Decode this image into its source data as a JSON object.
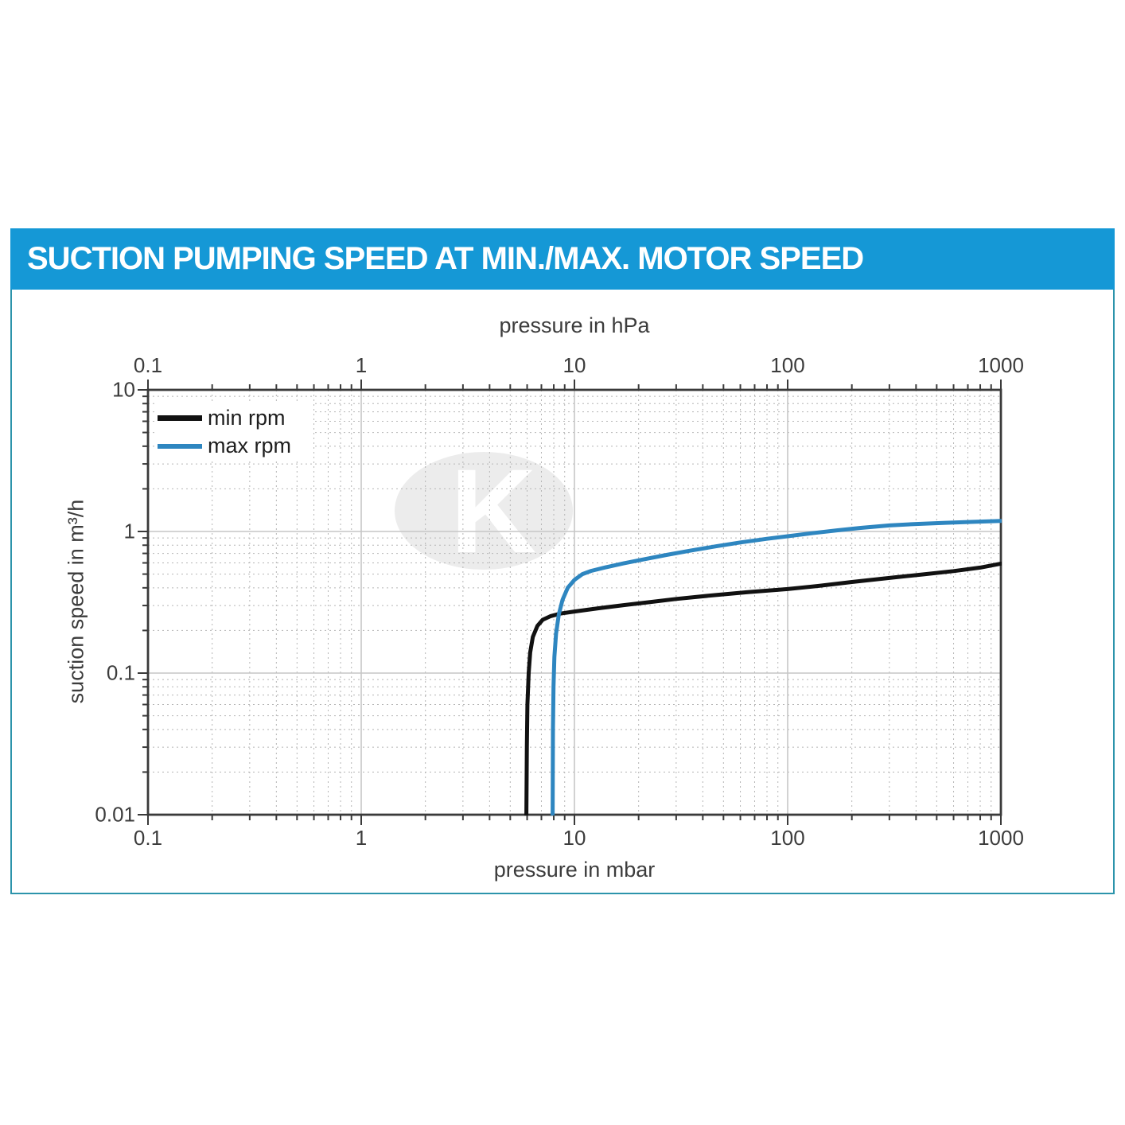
{
  "header": {
    "title": "SUCTION PUMPING SPEED AT MIN./MAX. MOTOR SPEED"
  },
  "colors": {
    "header_bg": "#1598d6",
    "header_text": "#ffffff",
    "panel_border": "#2c94ab",
    "axis": "#3a3a3a",
    "grid_major": "#c6c6c6",
    "grid_minor": "#b5b5b5",
    "min_rpm": "#111111",
    "max_rpm": "#2e86c0",
    "watermark": "#ececec"
  },
  "watermark": {
    "letter": "K"
  },
  "chart_data": {
    "type": "line",
    "x_scale": "log",
    "y_scale": "log",
    "x_range": [
      0.1,
      1000
    ],
    "y_range": [
      0.01,
      10
    ],
    "grid": "major-solid, minor-dotted",
    "x_top": {
      "label": "pressure in hPa",
      "ticks": [
        "0.1",
        "1",
        "10",
        "100",
        "1000"
      ]
    },
    "x_bottom": {
      "label": "pressure in mbar",
      "ticks": [
        "0.1",
        "1",
        "10",
        "100",
        "1000"
      ]
    },
    "y": {
      "label": "suction speed in m³/h",
      "ticks": [
        "10",
        "1",
        "0.1",
        "0.01"
      ]
    },
    "legend": {
      "position": "top-left"
    },
    "series": [
      {
        "name": "min rpm",
        "color": "#111111",
        "points": [
          [
            5.95,
            0.01
          ],
          [
            5.98,
            0.03
          ],
          [
            6.02,
            0.06
          ],
          [
            6.1,
            0.1
          ],
          [
            6.2,
            0.14
          ],
          [
            6.38,
            0.18
          ],
          [
            6.7,
            0.215
          ],
          [
            7.1,
            0.238
          ],
          [
            7.7,
            0.252
          ],
          [
            8.6,
            0.263
          ],
          [
            10,
            0.272
          ],
          [
            13,
            0.287
          ],
          [
            17,
            0.302
          ],
          [
            22,
            0.316
          ],
          [
            30,
            0.334
          ],
          [
            45,
            0.355
          ],
          [
            65,
            0.373
          ],
          [
            100,
            0.392
          ],
          [
            140,
            0.413
          ],
          [
            200,
            0.44
          ],
          [
            300,
            0.47
          ],
          [
            430,
            0.497
          ],
          [
            600,
            0.525
          ],
          [
            800,
            0.556
          ],
          [
            1000,
            0.593
          ]
        ]
      },
      {
        "name": "max rpm",
        "color": "#2e86c0",
        "points": [
          [
            7.9,
            0.01
          ],
          [
            7.93,
            0.04
          ],
          [
            7.98,
            0.08
          ],
          [
            8.05,
            0.13
          ],
          [
            8.2,
            0.19
          ],
          [
            8.45,
            0.26
          ],
          [
            8.8,
            0.33
          ],
          [
            9.3,
            0.4
          ],
          [
            10,
            0.455
          ],
          [
            10.9,
            0.5
          ],
          [
            12,
            0.527
          ],
          [
            14,
            0.558
          ],
          [
            17,
            0.595
          ],
          [
            21,
            0.634
          ],
          [
            27,
            0.683
          ],
          [
            35,
            0.732
          ],
          [
            46,
            0.785
          ],
          [
            60,
            0.836
          ],
          [
            80,
            0.888
          ],
          [
            100,
            0.925
          ],
          [
            130,
            0.972
          ],
          [
            170,
            1.018
          ],
          [
            220,
            1.06
          ],
          [
            300,
            1.103
          ],
          [
            400,
            1.13
          ],
          [
            550,
            1.152
          ],
          [
            700,
            1.166
          ],
          [
            850,
            1.177
          ],
          [
            1000,
            1.188
          ]
        ]
      }
    ]
  }
}
